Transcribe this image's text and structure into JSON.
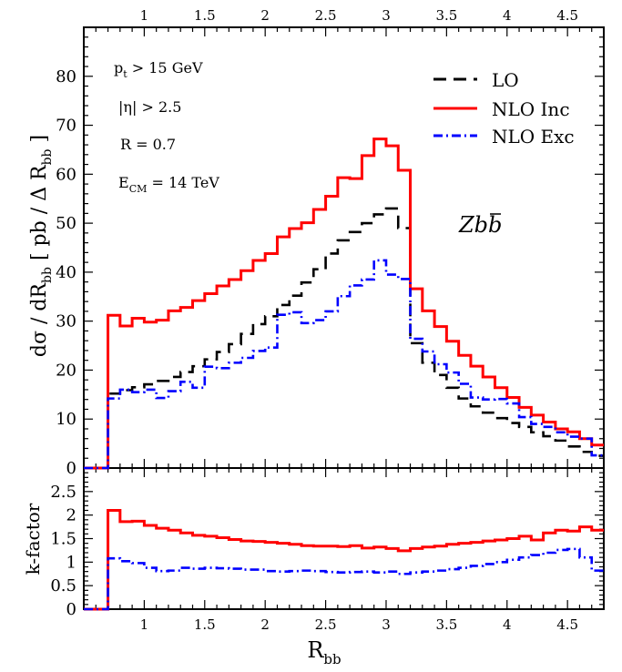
{
  "chart_data": [
    {
      "type": "line",
      "panel": "main",
      "xlim": [
        0.5,
        4.8
      ],
      "ylim": [
        0,
        90
      ],
      "yticks": [
        0,
        10,
        20,
        30,
        40,
        50,
        60,
        70,
        80
      ],
      "xticks": [
        1,
        1.5,
        2,
        2.5,
        3,
        3.5,
        4,
        4.5
      ],
      "grid": false,
      "legend_position": "top-right",
      "x_edges": [
        0.5,
        0.6,
        0.7,
        0.8,
        0.9,
        1.0,
        1.1,
        1.2,
        1.3,
        1.4,
        1.5,
        1.6,
        1.7,
        1.8,
        1.9,
        2.0,
        2.1,
        2.2,
        2.3,
        2.4,
        2.5,
        2.6,
        2.7,
        2.8,
        2.9,
        3.0,
        3.1,
        3.2,
        3.3,
        3.4,
        3.5,
        3.6,
        3.7,
        3.8,
        3.9,
        4.0,
        4.1,
        4.2,
        4.3,
        4.4,
        4.5,
        4.6,
        4.7,
        4.8
      ],
      "series": [
        {
          "name": "LO",
          "color": "#000000",
          "dash": "dash",
          "values": [
            0,
            0,
            15.2,
            15.9,
            16.5,
            17.1,
            17.8,
            18.6,
            19.6,
            20.8,
            22.2,
            23.7,
            25.3,
            27.4,
            29.4,
            31.0,
            33.3,
            35.2,
            37.9,
            40.6,
            43.8,
            46.5,
            48.2,
            50.0,
            51.8,
            53.0,
            49.0,
            25.5,
            21.5,
            19.0,
            16.4,
            14.2,
            12.6,
            11.3,
            10.2,
            9.2,
            8.4,
            7.3,
            6.5,
            5.6,
            4.4,
            3.3,
            2.5
          ]
        },
        {
          "name": "NLO Inc",
          "color": "#ff0000",
          "dash": "solid",
          "values": [
            0,
            0,
            31.2,
            29.0,
            30.6,
            29.8,
            30.2,
            32.1,
            32.8,
            34.2,
            35.6,
            37.2,
            38.5,
            40.3,
            42.4,
            43.8,
            47.2,
            48.9,
            50.1,
            52.8,
            55.5,
            59.3,
            59.1,
            63.8,
            67.2,
            65.8,
            60.8,
            36.6,
            32.1,
            28.9,
            25.9,
            23.0,
            20.8,
            18.6,
            16.4,
            14.4,
            12.4,
            10.8,
            9.4,
            8.0,
            7.4,
            6.0,
            4.7
          ]
        },
        {
          "name": "NLO Exc",
          "color": "#0000ff",
          "dash": "dashdot",
          "values": [
            0,
            0,
            14.2,
            16.0,
            15.5,
            16.0,
            14.3,
            15.7,
            17.6,
            16.4,
            20.7,
            20.4,
            21.5,
            22.5,
            23.9,
            24.6,
            31.3,
            31.8,
            29.6,
            30.2,
            32.0,
            35.1,
            37.3,
            38.5,
            42.4,
            39.5,
            38.6,
            26.4,
            23.8,
            21.2,
            19.5,
            17.2,
            14.4,
            14.0,
            14.1,
            13.2,
            10.4,
            9.0,
            8.4,
            7.3,
            6.4,
            6.0,
            2.6
          ]
        }
      ],
      "annotations": [
        {
          "base": "p",
          "sub": "t",
          "tail": " > 15 GeV"
        },
        {
          "text": "|η| > 2.5"
        },
        {
          "text": "R = 0.7"
        },
        {
          "base": "E",
          "sub": "CM",
          "tail": " = 14 TeV"
        }
      ],
      "process_label": "Zbb",
      "ylabel": {
        "lead": "dσ / dR",
        "sub": "bb",
        "bracket_open": "[ pb / Δ R",
        "bracket_close": "]"
      }
    },
    {
      "type": "line",
      "panel": "ratio",
      "xlim": [
        0.5,
        4.8
      ],
      "ylim": [
        0,
        3
      ],
      "yticks": [
        0,
        0.5,
        1,
        1.5,
        2,
        2.5
      ],
      "xticks": [
        1,
        1.5,
        2,
        2.5,
        3,
        3.5,
        4,
        4.5
      ],
      "grid": false,
      "ylabel": "k-factor",
      "xlabel": {
        "base": "R",
        "sub": "bb"
      },
      "x_edges": [
        0.5,
        0.6,
        0.7,
        0.8,
        0.9,
        1.0,
        1.1,
        1.2,
        1.3,
        1.4,
        1.5,
        1.6,
        1.7,
        1.8,
        1.9,
        2.0,
        2.1,
        2.2,
        2.3,
        2.4,
        2.5,
        2.6,
        2.7,
        2.8,
        2.9,
        3.0,
        3.1,
        3.2,
        3.3,
        3.4,
        3.5,
        3.6,
        3.7,
        3.8,
        3.9,
        4.0,
        4.1,
        4.2,
        4.3,
        4.4,
        4.5,
        4.6,
        4.7,
        4.8
      ],
      "series": [
        {
          "name": "NLO Inc",
          "color": "#ff0000",
          "dash": "solid",
          "values": [
            0,
            0,
            2.1,
            1.86,
            1.87,
            1.78,
            1.72,
            1.68,
            1.62,
            1.57,
            1.55,
            1.52,
            1.48,
            1.45,
            1.44,
            1.42,
            1.4,
            1.38,
            1.35,
            1.34,
            1.34,
            1.33,
            1.35,
            1.3,
            1.32,
            1.29,
            1.24,
            1.29,
            1.32,
            1.34,
            1.38,
            1.4,
            1.42,
            1.45,
            1.47,
            1.5,
            1.55,
            1.47,
            1.62,
            1.68,
            1.66,
            1.75,
            1.68
          ]
        },
        {
          "name": "NLO Exc",
          "color": "#0000ff",
          "dash": "dashdot",
          "values": [
            0,
            0,
            1.08,
            1.02,
            0.98,
            0.88,
            0.81,
            0.82,
            0.88,
            0.86,
            0.88,
            0.87,
            0.86,
            0.84,
            0.84,
            0.81,
            0.8,
            0.81,
            0.82,
            0.81,
            0.79,
            0.78,
            0.79,
            0.8,
            0.78,
            0.8,
            0.75,
            0.78,
            0.8,
            0.82,
            0.85,
            0.88,
            0.92,
            0.96,
            1.0,
            1.05,
            1.1,
            1.15,
            1.2,
            1.26,
            1.28,
            1.1,
            0.82
          ]
        }
      ]
    }
  ]
}
